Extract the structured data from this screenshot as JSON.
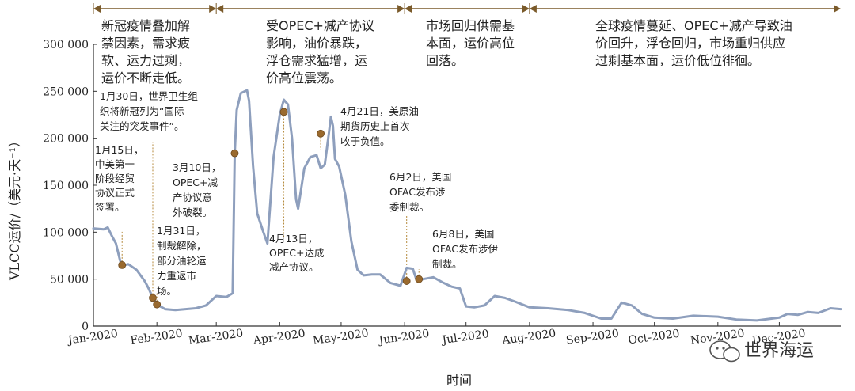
{
  "chart_data": {
    "type": "line",
    "title": "",
    "xlabel": "时间",
    "ylabel": "VLCC运价/（美元·天⁻¹）",
    "ylim": [
      0,
      300000
    ],
    "yticks": [
      {
        "value": 0,
        "label": "0"
      },
      {
        "value": 50000,
        "label": "50 000"
      },
      {
        "value": 100000,
        "label": "100 000"
      },
      {
        "value": 150000,
        "label": "150 000"
      },
      {
        "value": 200000,
        "label": "200 000"
      },
      {
        "value": 250000,
        "label": "250 000"
      },
      {
        "value": 300000,
        "label": "300 000"
      }
    ],
    "xticks": [
      {
        "value": "2020-01-01",
        "label": "Jan-2020"
      },
      {
        "value": "2020-02-01",
        "label": "Feb-2020"
      },
      {
        "value": "2020-03-01",
        "label": "Mar-2020"
      },
      {
        "value": "2020-04-01",
        "label": "Apr-2020"
      },
      {
        "value": "2020-05-01",
        "label": "May-2020"
      },
      {
        "value": "2020-06-01",
        "label": "Jun-2020"
      },
      {
        "value": "2020-07-01",
        "label": "Jul-2020"
      },
      {
        "value": "2020-08-01",
        "label": "Aug-2020"
      },
      {
        "value": "2020-09-01",
        "label": "Sep-2020"
      },
      {
        "value": "2020-10-01",
        "label": "Oct-2020"
      },
      {
        "value": "2020-11-01",
        "label": "Nov-2020"
      },
      {
        "value": "2020-12-01",
        "label": "Dec-2020"
      }
    ],
    "xlim": [
      "2020-01-01",
      "2020-12-31"
    ],
    "series": [
      {
        "color": "#8e9fbd",
        "points": [
          [
            "2020-01-01",
            104000
          ],
          [
            "2020-01-06",
            103000
          ],
          [
            "2020-01-08",
            105000
          ],
          [
            "2020-01-10",
            96000
          ],
          [
            "2020-01-12",
            88000
          ],
          [
            "2020-01-14",
            70000
          ],
          [
            "2020-01-15",
            64000
          ],
          [
            "2020-01-18",
            66000
          ],
          [
            "2020-01-22",
            60000
          ],
          [
            "2020-01-26",
            48000
          ],
          [
            "2020-01-28",
            40000
          ],
          [
            "2020-01-30",
            30000
          ],
          [
            "2020-02-01",
            23000
          ],
          [
            "2020-02-05",
            18000
          ],
          [
            "2020-02-10",
            17000
          ],
          [
            "2020-02-15",
            18000
          ],
          [
            "2020-02-20",
            19000
          ],
          [
            "2020-02-25",
            22000
          ],
          [
            "2020-03-01",
            32000
          ],
          [
            "2020-03-06",
            31000
          ],
          [
            "2020-03-09",
            35000
          ],
          [
            "2020-03-10",
            184000
          ],
          [
            "2020-03-11",
            230000
          ],
          [
            "2020-03-13",
            248000
          ],
          [
            "2020-03-16",
            251000
          ],
          [
            "2020-03-17",
            240000
          ],
          [
            "2020-03-19",
            170000
          ],
          [
            "2020-03-21",
            120000
          ],
          [
            "2020-03-24",
            100000
          ],
          [
            "2020-03-26",
            88000
          ],
          [
            "2020-03-29",
            180000
          ],
          [
            "2020-04-01",
            225000
          ],
          [
            "2020-04-03",
            241000
          ],
          [
            "2020-04-05",
            236000
          ],
          [
            "2020-04-07",
            200000
          ],
          [
            "2020-04-09",
            135000
          ],
          [
            "2020-04-10",
            125000
          ],
          [
            "2020-04-13",
            168000
          ],
          [
            "2020-04-16",
            180000
          ],
          [
            "2020-04-19",
            182000
          ],
          [
            "2020-04-21",
            168000
          ],
          [
            "2020-04-23",
            172000
          ],
          [
            "2020-04-25",
            205000
          ],
          [
            "2020-04-26",
            223000
          ],
          [
            "2020-04-27",
            213000
          ],
          [
            "2020-04-28",
            178000
          ],
          [
            "2020-04-30",
            170000
          ],
          [
            "2020-05-03",
            140000
          ],
          [
            "2020-05-06",
            90000
          ],
          [
            "2020-05-09",
            60000
          ],
          [
            "2020-05-12",
            54000
          ],
          [
            "2020-05-16",
            55000
          ],
          [
            "2020-05-20",
            55000
          ],
          [
            "2020-05-25",
            46000
          ],
          [
            "2020-05-30",
            43000
          ],
          [
            "2020-06-02",
            62000
          ],
          [
            "2020-06-05",
            61000
          ],
          [
            "2020-06-07",
            48000
          ],
          [
            "2020-06-10",
            50000
          ],
          [
            "2020-06-15",
            52000
          ],
          [
            "2020-06-20",
            46000
          ],
          [
            "2020-06-24",
            42000
          ],
          [
            "2020-06-28",
            40000
          ],
          [
            "2020-07-01",
            21000
          ],
          [
            "2020-07-05",
            20000
          ],
          [
            "2020-07-10",
            22000
          ],
          [
            "2020-07-15",
            32000
          ],
          [
            "2020-07-20",
            30000
          ],
          [
            "2020-07-25",
            26000
          ],
          [
            "2020-08-01",
            20000
          ],
          [
            "2020-08-10",
            19000
          ],
          [
            "2020-08-20",
            17000
          ],
          [
            "2020-08-28",
            14000
          ],
          [
            "2020-09-05",
            8000
          ],
          [
            "2020-09-10",
            8000
          ],
          [
            "2020-09-15",
            25000
          ],
          [
            "2020-09-20",
            22000
          ],
          [
            "2020-09-25",
            13000
          ],
          [
            "2020-10-01",
            9000
          ],
          [
            "2020-10-10",
            8000
          ],
          [
            "2020-10-20",
            11000
          ],
          [
            "2020-11-01",
            10000
          ],
          [
            "2020-11-10",
            7000
          ],
          [
            "2020-11-20",
            6000
          ],
          [
            "2020-12-01",
            9000
          ],
          [
            "2020-12-05",
            13000
          ],
          [
            "2020-12-10",
            12000
          ],
          [
            "2020-12-15",
            15000
          ],
          [
            "2020-12-20",
            14000
          ],
          [
            "2020-12-26",
            19000
          ],
          [
            "2020-12-31",
            18000
          ]
        ]
      }
    ],
    "event_marks": [
      {
        "date": "2020-01-15",
        "value": 65000
      },
      {
        "date": "2020-01-30",
        "value": 30000
      },
      {
        "date": "2020-02-01",
        "value": 23000
      },
      {
        "date": "2020-03-10",
        "value": 184000
      },
      {
        "date": "2020-04-03",
        "value": 228000
      },
      {
        "date": "2020-04-21",
        "value": 205000
      },
      {
        "date": "2020-06-02",
        "value": 48000
      },
      {
        "date": "2020-06-08",
        "value": 50000
      }
    ],
    "phases": [
      {
        "start": "2020-01-01",
        "end": "2020-03-01",
        "lines": [
          "新冠疫情叠加解",
          "禁因素，需求疲",
          "软、运力过剩，",
          "运价不断走低。"
        ]
      },
      {
        "start": "2020-03-01",
        "end": "2020-06-01",
        "lines": [
          "受OPEC+减产协议",
          "影响，油价暴跌，",
          "浮仓需求猛增，运",
          "价高位震荡。"
        ]
      },
      {
        "start": "2020-06-01",
        "end": "2020-08-01",
        "lines": [
          "市场回归供需基",
          "本面，运价高位",
          "回落。"
        ]
      },
      {
        "start": "2020-08-01",
        "end": "2020-12-31",
        "lines": [
          "全球疫情蔓延、OPEC+减产导致油",
          "价回升，浮仓回归，市场重归供应",
          "过剩基本面，运价低位徘徊。"
        ]
      }
    ],
    "annotations": [
      {
        "lines": [
          "1月30日，世界卫生组",
          "织将新冠列为“国际",
          "关注的突发事件”。"
        ]
      },
      {
        "lines": [
          "1月15日，",
          "中美第一",
          "阶段经贸",
          "协议正式",
          "签署。"
        ]
      },
      {
        "lines": [
          "3月10日，",
          "OPEC+减",
          "产协议意",
          "外破裂。"
        ]
      },
      {
        "lines": [
          "1月31日，",
          "制裁解除，",
          "部分油轮运",
          "力重返市",
          "场。"
        ]
      },
      {
        "lines": [
          "4月21日，美原油",
          "期货历史上首次",
          "收于负值。"
        ]
      },
      {
        "lines": [
          "4月13日，",
          "OPEC+达成",
          "减产协议。"
        ]
      },
      {
        "lines": [
          "6月2日，美国",
          "OFAC发布涉",
          "委制裁。"
        ]
      },
      {
        "lines": [
          "6月8日，美国",
          "OFAC发布涉伊",
          "制裁。"
        ]
      }
    ],
    "grid": false,
    "legend": "none"
  },
  "watermark": {
    "text": "世界海运",
    "icon": "wechat-bubble-icon"
  },
  "colors": {
    "line": "#8e9fbd",
    "marker": "#9a6a2e",
    "phase_arrow": "#7a5a2a",
    "leader": "#b58a3c"
  }
}
